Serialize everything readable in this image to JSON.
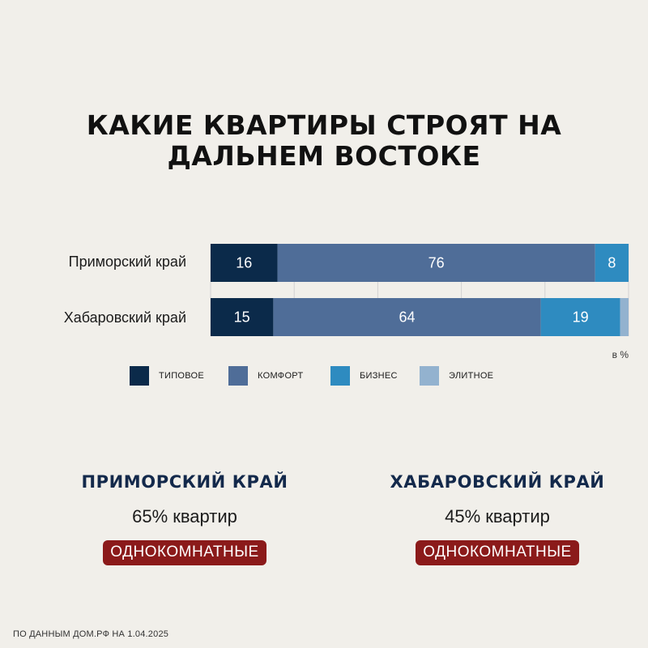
{
  "title": {
    "line1": "КАКИЕ КВАРТИРЫ СТРОЯТ НА",
    "line2": "ДАЛЬНЕМ ВОСТОКЕ"
  },
  "chart_data": {
    "type": "bar",
    "orientation": "horizontal",
    "stacked": true,
    "title": "КАКИЕ КВАРТИРЫ СТРОЯТ НА ДАЛЬНЕМ ВОСТОКЕ",
    "unit_label": "в %",
    "xlim": [
      0,
      100
    ],
    "grid": true,
    "legend_position": "bottom",
    "categories": [
      "Приморский край",
      "Хабаровский край"
    ],
    "series": [
      {
        "name": "ТИПОВОЕ",
        "values": [
          16,
          15
        ],
        "labels": [
          "16",
          "15"
        ],
        "color": "#0b2a4a"
      },
      {
        "name": "КОМФОРТ",
        "values": [
          76,
          64
        ],
        "labels": [
          "76",
          "64"
        ],
        "color": "#4f6d98"
      },
      {
        "name": "БИЗНЕС",
        "values": [
          8,
          19
        ],
        "labels": [
          "8",
          "19"
        ],
        "color": "#2e8bc0"
      },
      {
        "name": "ЭЛИТНОЕ",
        "values": [
          0,
          2
        ],
        "labels": [
          "",
          ""
        ],
        "color": "#93b2cf"
      }
    ]
  },
  "stats": [
    {
      "region": "ПРИМОРСКИЙ КРАЙ",
      "value": "65% квартир",
      "badge": "ОДНОКОМНАТНЫЕ"
    },
    {
      "region": "ХАБАРОВСКИЙ КРАЙ",
      "value": "45% квартир",
      "badge": "ОДНОКОМНАТНЫЕ"
    }
  ],
  "footnote": "ПО ДАННЫМ ДОМ.РФ НА 1.04.2025",
  "colors": {
    "background": "#f1efea",
    "heading": "#111111",
    "region_heading": "#13294b",
    "badge": "#8b1a1a",
    "grid": "#d2d2d2"
  }
}
